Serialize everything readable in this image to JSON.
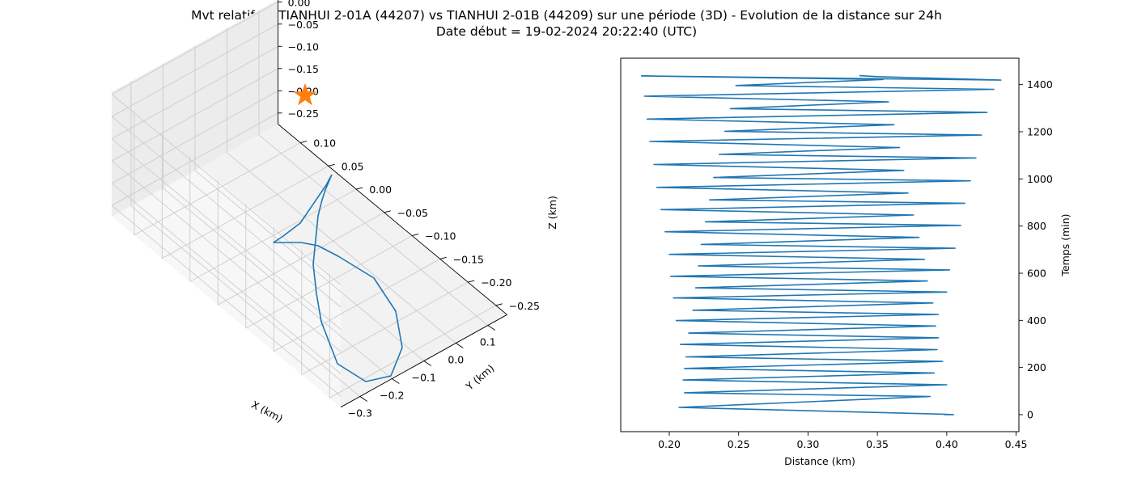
{
  "figure": {
    "title_line1": "Mvt relatif de TIANHUI 2-01A (44207) vs TIANHUI 2-01B (44209) sur une période (3D) - Evolution de la distance sur 24h",
    "title_line2": "Date début = 19-02-2024 20:22:40 (UTC)"
  },
  "colors": {
    "line": "#1f77b4",
    "marker": "#ff7f0e",
    "pane": "#f2f2f2",
    "grid": "#cccccc"
  },
  "chart_data": [
    {
      "type": "line3d",
      "xlabel": "X (km)",
      "ylabel": "Y (km)",
      "zlabel": "Z (km)",
      "xticks": [
        -0.3,
        -0.2,
        -0.1,
        0.0,
        0.1
      ],
      "yticks": [
        -0.25,
        -0.2,
        -0.15,
        -0.1,
        -0.05,
        0.0,
        0.05,
        0.1
      ],
      "zticks": [
        0.0,
        -0.05,
        -0.1,
        -0.15,
        -0.2,
        -0.25
      ],
      "xticklabels": [
        "−0.3",
        "−0.2",
        "−0.1",
        "0.0",
        "0.1"
      ],
      "yticklabels": [
        "−0.25",
        "−0.20",
        "−0.15",
        "−0.10",
        "−0.05",
        "0.00",
        "0.05",
        "0.10"
      ],
      "zticklabels": [
        "0.00",
        "−0.05",
        "−0.10",
        "−0.15",
        "−0.20",
        "−0.25"
      ],
      "marker": {
        "symbol": "star",
        "x": 0.0,
        "y": 0.0,
        "z": 0.0
      },
      "grid": true
    },
    {
      "type": "line",
      "xlabel": "Distance (km)",
      "ylabel": "Temps (min)",
      "xlim": [
        0.165,
        0.452
      ],
      "ylim": [
        -72,
        1512
      ],
      "xticks": [
        0.2,
        0.25,
        0.3,
        0.35,
        0.4,
        0.45
      ],
      "xticklabels": [
        "0.20",
        "0.25",
        "0.30",
        "0.35",
        "0.40",
        "0.45"
      ],
      "yticks": [
        0,
        200,
        400,
        600,
        800,
        1000,
        1200,
        1400
      ],
      "yticklabels": [
        "0",
        "200",
        "400",
        "600",
        "800",
        "1000",
        "1200",
        "1400"
      ],
      "y_axis_side": "right",
      "series": [
        {
          "points": [
            [
              0.398,
              0
            ],
            [
              0.405,
              0
            ],
            [
              0.398,
              2
            ],
            [
              0.207,
              31
            ],
            [
              0.388,
              77
            ],
            [
              0.211,
              93
            ],
            [
              0.4,
              127
            ],
            [
              0.21,
              147
            ],
            [
              0.391,
              177
            ],
            [
              0.211,
              196
            ],
            [
              0.397,
              226
            ],
            [
              0.212,
              245
            ],
            [
              0.393,
              276
            ],
            [
              0.208,
              298
            ],
            [
              0.394,
              326
            ],
            [
              0.214,
              346
            ],
            [
              0.392,
              376
            ],
            [
              0.205,
              399
            ],
            [
              0.394,
              425
            ],
            [
              0.217,
              443
            ],
            [
              0.39,
              474
            ],
            [
              0.203,
              495
            ],
            [
              0.4,
              520
            ],
            [
              0.219,
              538
            ],
            [
              0.386,
              567
            ],
            [
              0.201,
              587
            ],
            [
              0.402,
              614
            ],
            [
              0.221,
              631
            ],
            [
              0.384,
              659
            ],
            [
              0.2,
              680
            ],
            [
              0.406,
              706
            ],
            [
              0.223,
              722
            ],
            [
              0.38,
              752
            ],
            [
              0.197,
              776
            ],
            [
              0.41,
              803
            ],
            [
              0.226,
              818
            ],
            [
              0.376,
              847
            ],
            [
              0.194,
              870
            ],
            [
              0.413,
              897
            ],
            [
              0.229,
              911
            ],
            [
              0.372,
              940
            ],
            [
              0.191,
              964
            ],
            [
              0.417,
              992
            ],
            [
              0.232,
              1006
            ],
            [
              0.369,
              1036
            ],
            [
              0.189,
              1061
            ],
            [
              0.421,
              1089
            ],
            [
              0.236,
              1104
            ],
            [
              0.366,
              1133
            ],
            [
              0.186,
              1159
            ],
            [
              0.425,
              1186
            ],
            [
              0.24,
              1202
            ],
            [
              0.362,
              1230
            ],
            [
              0.184,
              1254
            ],
            [
              0.429,
              1282
            ],
            [
              0.244,
              1298
            ],
            [
              0.358,
              1327
            ],
            [
              0.182,
              1351
            ],
            [
              0.434,
              1380
            ],
            [
              0.248,
              1396
            ],
            [
              0.354,
              1422
            ],
            [
              0.18,
              1437
            ],
            [
              0.439,
              1419
            ],
            [
              0.35,
              1434
            ],
            [
              0.337,
              1438
            ]
          ]
        }
      ]
    }
  ]
}
